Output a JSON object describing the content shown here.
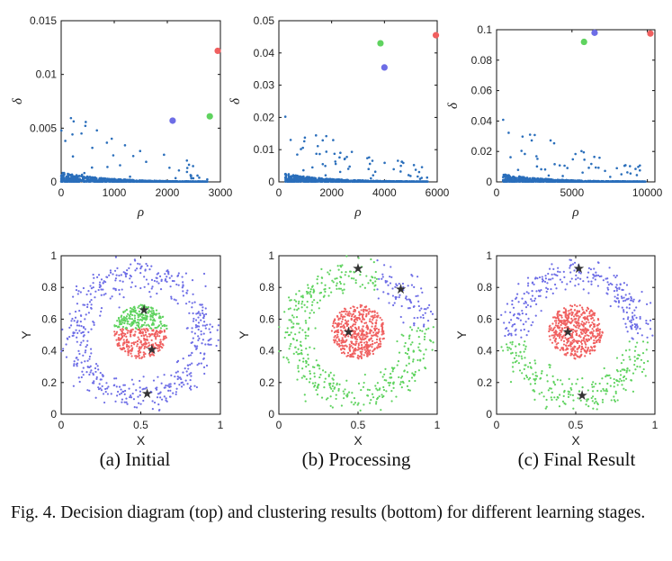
{
  "figure": {
    "caption": "Fig. 4.  Decision diagram (top) and clustering results (bottom) for different learning stages.",
    "colors": {
      "points": "#2a6ebb",
      "red": "#f06060",
      "green": "#5fd35f",
      "blue": "#6d6de6",
      "center": "#333333"
    }
  },
  "chart_data": [
    {
      "id": "a-decision",
      "type": "scatter",
      "xlabel": "ρ",
      "ylabel": "δ",
      "xlim": [
        0,
        3000
      ],
      "ylim": [
        0,
        0.015
      ],
      "xticks": [
        "0",
        "1000",
        "2000",
        "3000"
      ],
      "yticks": [
        "0",
        "0.005",
        "0.01",
        "0.015"
      ],
      "xtick_values": [
        0,
        1000,
        2000,
        3000
      ],
      "ytick_values": [
        0,
        0.005,
        0.01,
        0.015
      ],
      "highlighted": [
        {
          "x": 2950,
          "y": 0.0122,
          "color": "red"
        },
        {
          "x": 2800,
          "y": 0.0061,
          "color": "green"
        },
        {
          "x": 2100,
          "y": 0.0057,
          "color": "blue"
        }
      ]
    },
    {
      "id": "b-decision",
      "type": "scatter",
      "xlabel": "ρ",
      "ylabel": "δ",
      "xlim": [
        0,
        6000
      ],
      "ylim": [
        0,
        0.05
      ],
      "xticks": [
        "0",
        "2000",
        "4000",
        "6000"
      ],
      "yticks": [
        "0",
        "0.01",
        "0.02",
        "0.03",
        "0.04",
        "0.05"
      ],
      "xtick_values": [
        0,
        2000,
        4000,
        6000
      ],
      "ytick_values": [
        0,
        0.01,
        0.02,
        0.03,
        0.04,
        0.05
      ],
      "highlighted": [
        {
          "x": 5950,
          "y": 0.0455,
          "color": "red"
        },
        {
          "x": 3850,
          "y": 0.043,
          "color": "green"
        },
        {
          "x": 4000,
          "y": 0.0355,
          "color": "blue"
        }
      ]
    },
    {
      "id": "c-decision",
      "type": "scatter",
      "xlabel": "ρ",
      "ylabel": "δ",
      "xlim": [
        0,
        10500
      ],
      "ylim": [
        0,
        0.1
      ],
      "xticks": [
        "0",
        "5000",
        "10000"
      ],
      "yticks": [
        "0",
        "0.02",
        "0.04",
        "0.06",
        "0.08",
        "0.1"
      ],
      "xtick_values": [
        0,
        5000,
        10000
      ],
      "ytick_values": [
        0,
        0.02,
        0.04,
        0.06,
        0.08,
        0.1
      ],
      "highlighted": [
        {
          "x": 10200,
          "y": 0.0975,
          "color": "red"
        },
        {
          "x": 5800,
          "y": 0.092,
          "color": "green"
        },
        {
          "x": 6500,
          "y": 0.098,
          "color": "blue"
        }
      ]
    },
    {
      "id": "a-cluster",
      "type": "scatter",
      "xlabel": "X",
      "ylabel": "Y",
      "xlim": [
        0,
        1
      ],
      "ylim": [
        0,
        1
      ],
      "xticks": [
        "0",
        "0.5",
        "1"
      ],
      "yticks": [
        "0",
        "0.2",
        "0.4",
        "0.6",
        "0.8",
        "1"
      ],
      "xtick_values": [
        0,
        0.5,
        1
      ],
      "ytick_values": [
        0,
        0.2,
        0.4,
        0.6,
        0.8,
        1
      ],
      "centers": [
        {
          "x": 0.52,
          "y": 0.66,
          "cluster": "green"
        },
        {
          "x": 0.57,
          "y": 0.41,
          "cluster": "red"
        },
        {
          "x": 0.54,
          "y": 0.13,
          "cluster": "blue"
        }
      ]
    },
    {
      "id": "b-cluster",
      "type": "scatter",
      "xlabel": "X",
      "ylabel": "Y",
      "xlim": [
        0,
        1
      ],
      "ylim": [
        0,
        1
      ],
      "xticks": [
        "0",
        "0.5",
        "1"
      ],
      "yticks": [
        "0",
        "0.2",
        "0.4",
        "0.6",
        "0.8",
        "1"
      ],
      "xtick_values": [
        0,
        0.5,
        1
      ],
      "ytick_values": [
        0,
        0.2,
        0.4,
        0.6,
        0.8,
        1
      ],
      "centers": [
        {
          "x": 0.5,
          "y": 0.92,
          "cluster": "green"
        },
        {
          "x": 0.77,
          "y": 0.79,
          "cluster": "blue"
        },
        {
          "x": 0.44,
          "y": 0.52,
          "cluster": "red"
        }
      ]
    },
    {
      "id": "c-cluster",
      "type": "scatter",
      "xlabel": "X",
      "ylabel": "Y",
      "xlim": [
        0,
        1
      ],
      "ylim": [
        0,
        1
      ],
      "xticks": [
        "0",
        "0.5",
        "1"
      ],
      "yticks": [
        "0",
        "0.2",
        "0.4",
        "0.6",
        "0.8",
        "1"
      ],
      "xtick_values": [
        0,
        0.5,
        1
      ],
      "ytick_values": [
        0,
        0.2,
        0.4,
        0.6,
        0.8,
        1
      ],
      "centers": [
        {
          "x": 0.52,
          "y": 0.92,
          "cluster": "blue"
        },
        {
          "x": 0.45,
          "y": 0.52,
          "cluster": "red"
        },
        {
          "x": 0.54,
          "y": 0.12,
          "cluster": "green"
        }
      ]
    }
  ],
  "subcaptions": [
    "(a)  Initial",
    "(b)  Processing",
    "(c)  Final Result"
  ]
}
